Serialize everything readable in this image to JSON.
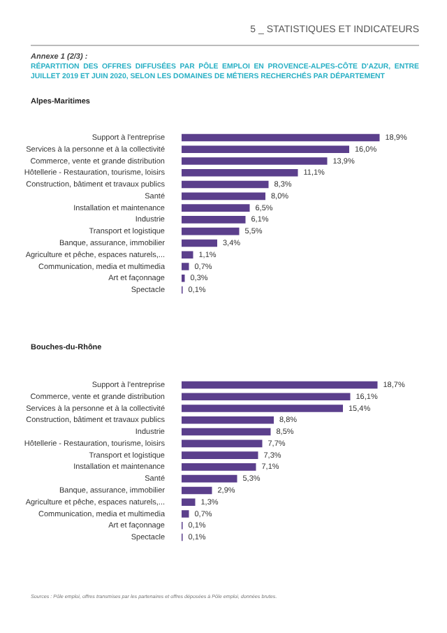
{
  "chart_data": [
    {
      "type": "bar",
      "orientation": "horizontal",
      "title": "RÉPARTITION DES OFFRES DIFFUSÉES PAR PÔLE EMPLOI EN PROVENCE-ALPES-CÔTE D'AZUR, ENTRE JUILLET 2019 ET JUIN 2020, SELON LES DOMAINES DE MÉTIERS RECHERCHÉS PAR DÉPARTEMENT",
      "subtitle": "Alpes-Maritimes",
      "annotations": [
        "5 _ STATISTIQUES ET INDICATEURS",
        "Annexe 1 (2/3) :"
      ],
      "categories": [
        "Support à l'entreprise",
        "Services à la personne et à la collectivité",
        "Commerce, vente et grande distribution",
        "Hôtellerie - Restauration, tourisme, loisirs",
        "Construction, bâtiment et travaux publics",
        "Santé",
        "Installation et maintenance",
        "Industrie",
        "Transport et logistique",
        "Banque, assurance, immobilier",
        "Agriculture et pêche, espaces naturels,...",
        "Communication, media et multimedia",
        "Art et façonnage",
        "Spectacle"
      ],
      "values": [
        18.9,
        16.0,
        13.9,
        11.1,
        8.3,
        8.0,
        6.5,
        6.1,
        5.5,
        3.4,
        1.1,
        0.7,
        0.3,
        0.1
      ],
      "value_labels": [
        "18,9%",
        "16,0%",
        "13,9%",
        "11,1%",
        "8,3%",
        "8,0%",
        "6,5%",
        "6,1%",
        "5,5%",
        "3,4%",
        "1,1%",
        "0,7%",
        "0,3%",
        "0,1%"
      ],
      "color": "#5b3f8c"
    },
    {
      "type": "bar",
      "orientation": "horizontal",
      "subtitle": "Bouches-du-Rhône",
      "annotations": [
        "Sources : Pôle emploi, offres transmises par les partenaires et offres déposées à Pôle emploi, données brutes."
      ],
      "categories": [
        "Support à l'entreprise",
        "Commerce, vente et grande distribution",
        "Services à la personne et à la collectivité",
        "Construction, bâtiment et travaux publics",
        "Industrie",
        "Hôtellerie - Restauration, tourisme, loisirs",
        "Transport et logistique",
        "Installation et maintenance",
        "Santé",
        "Banque, assurance, immobilier",
        "Agriculture et pêche, espaces naturels,...",
        "Communication, media et multimedia",
        "Art et façonnage",
        "Spectacle"
      ],
      "values": [
        18.7,
        16.1,
        15.4,
        8.8,
        8.5,
        7.7,
        7.3,
        7.1,
        5.3,
        2.9,
        1.3,
        0.7,
        0.1,
        0.1
      ],
      "value_labels": [
        "18,7%",
        "16,1%",
        "15,4%",
        "8,8%",
        "8,5%",
        "7,7%",
        "7,3%",
        "7,1%",
        "5,3%",
        "2,9%",
        "1,3%",
        "0,7%",
        "0,1%",
        "0,1%"
      ],
      "color": "#5b3f8c"
    }
  ]
}
